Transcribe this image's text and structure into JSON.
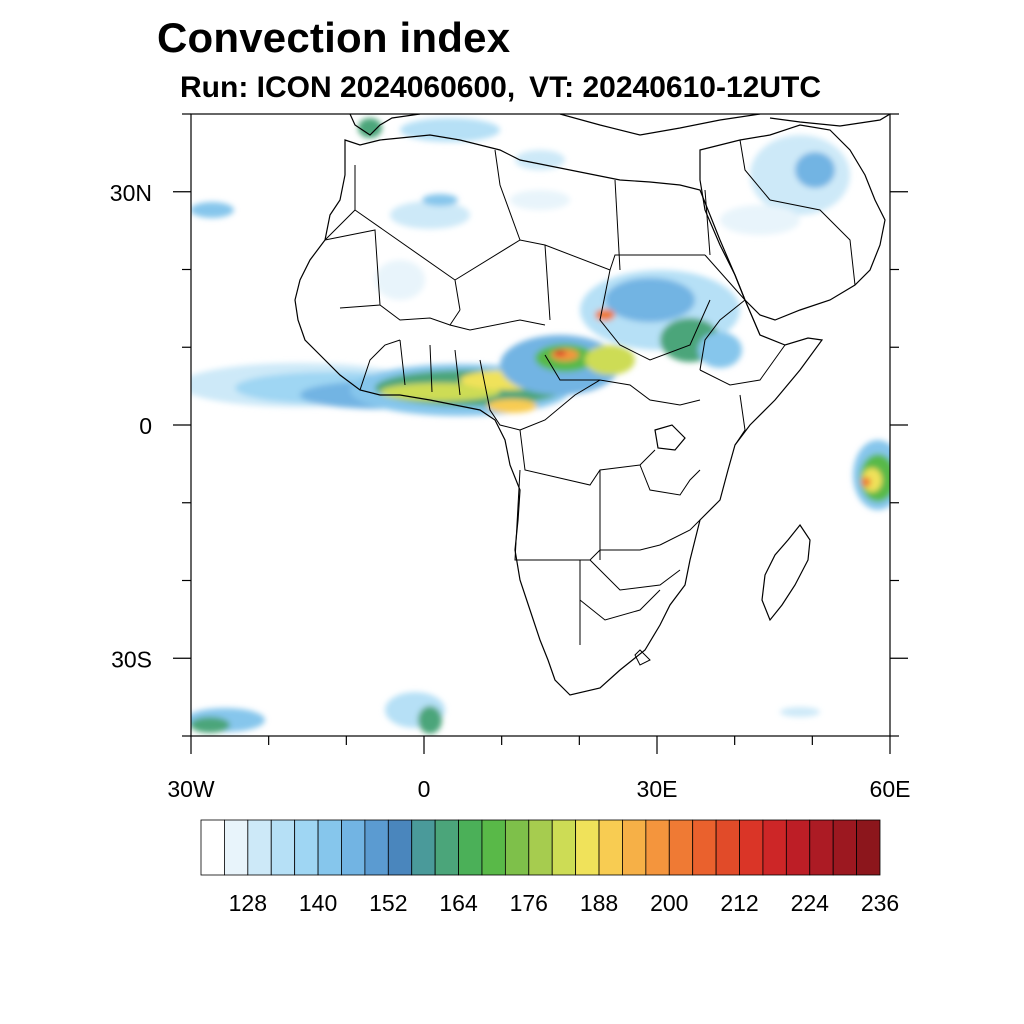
{
  "title": "Convection index",
  "subtitle": {
    "run_label": "Run: ICON 2024060600,",
    "valid_label": "VT: 20240610-12UTC"
  },
  "map": {
    "projection": "cylindrical equidistant",
    "lon_range": [
      -30,
      60
    ],
    "lat_range": [
      -40,
      40
    ],
    "lon_ticks": [
      "30W",
      "0",
      "30E",
      "60E"
    ],
    "lat_ticks": [
      "30N",
      "0",
      "30S"
    ],
    "coastlines": true,
    "country_borders": true
  },
  "colorbar": {
    "labels": [
      "128",
      "140",
      "152",
      "164",
      "176",
      "188",
      "200",
      "212",
      "224",
      "236"
    ],
    "colors": [
      "#ffffff",
      "#e8f4fb",
      "#cde9f8",
      "#b6e0f6",
      "#9fd6f3",
      "#86c6ec",
      "#72b4e3",
      "#5b9bd1",
      "#4a86bd",
      "#4a9a9a",
      "#4ba57a",
      "#4bb058",
      "#59b948",
      "#7ec04a",
      "#a6cc4f",
      "#cddc55",
      "#f0e25a",
      "#f8cc52",
      "#f6b047",
      "#f4953d",
      "#ef7a34",
      "#ea612d",
      "#e14b29",
      "#da3527",
      "#cd2627",
      "#bd1e26",
      "#ac1b24",
      "#9c1820",
      "#8c161c"
    ]
  }
}
